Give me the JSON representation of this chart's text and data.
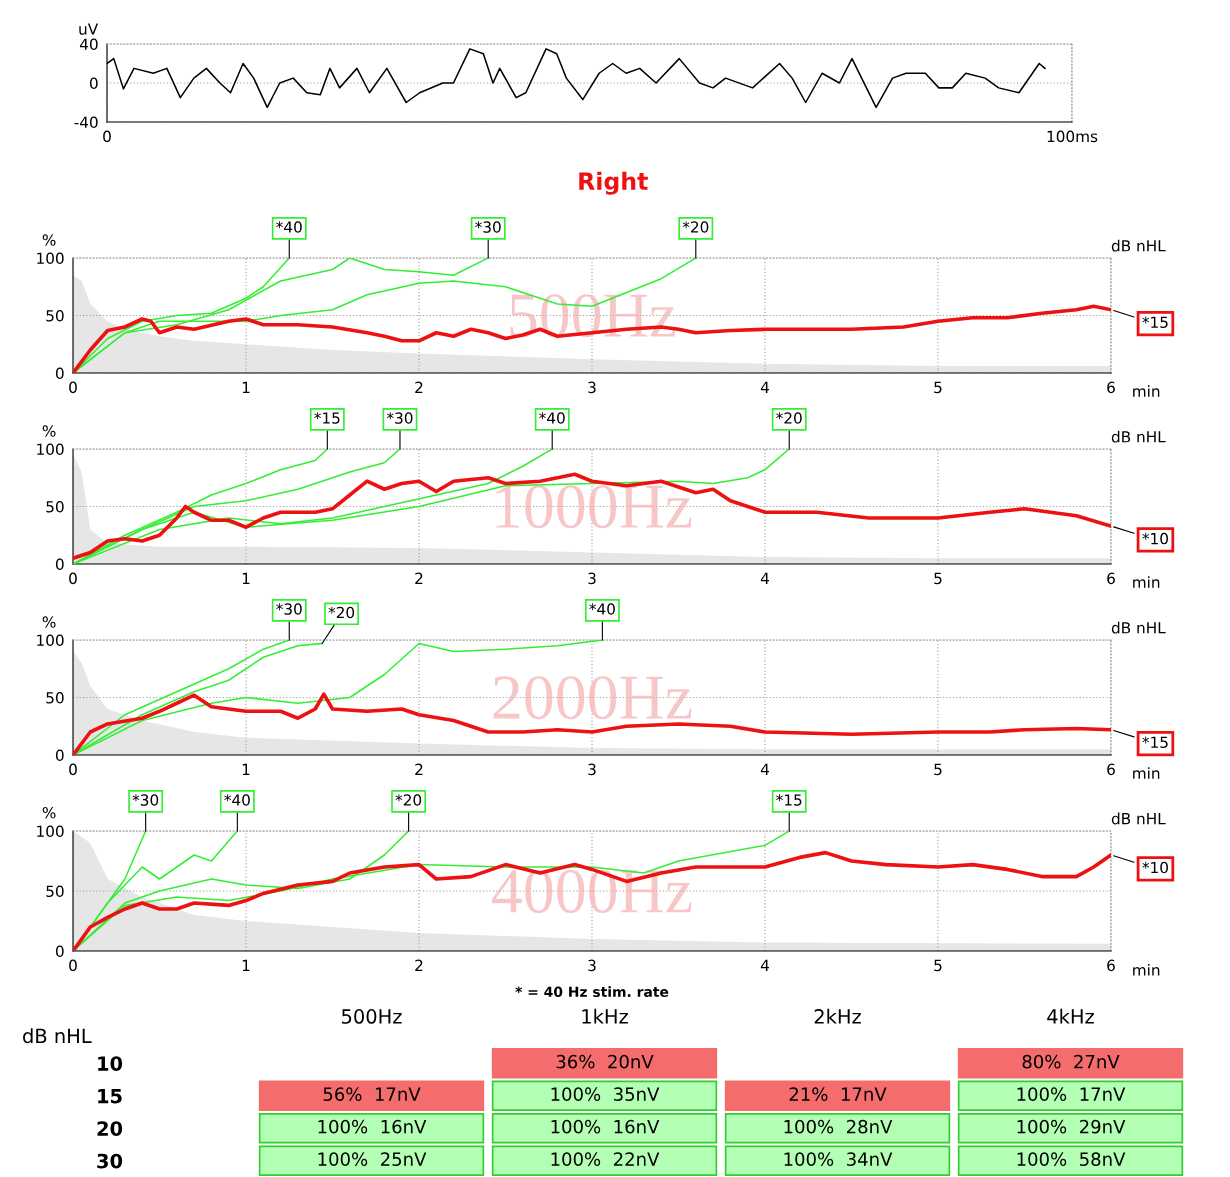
{
  "chart_data": [
    {
      "type": "line",
      "ylabel": "uV",
      "xlim": [
        0,
        100
      ],
      "ylim": [
        -40,
        40
      ],
      "xticks": [
        0,
        {
          "value": 100,
          "label": "100ms"
        }
      ],
      "yticks": [
        -40,
        0,
        40
      ],
      "grid": true,
      "tick_labels": true,
      "series": [
        {
          "color": "#000000",
          "x": [
            0,
            0.7,
            1.7,
            2.8,
            4.8,
            6.2,
            7.6,
            9.0,
            10.3,
            11.7,
            12.8,
            14.1,
            15.2,
            16.6,
            17.9,
            19.3,
            20.7,
            22.1,
            23.1,
            24.1,
            25.9,
            27.2,
            29.0,
            31.0,
            32.4,
            34.8,
            35.9,
            37.6,
            39.0,
            40.0,
            40.7,
            42.4,
            43.4,
            45.5,
            46.6,
            47.6,
            49.3,
            51.0,
            52.4,
            53.8,
            55.2,
            56.9,
            59.3,
            61.4,
            62.8,
            64.1,
            66.9,
            69.7,
            71.0,
            72.4,
            74.1,
            75.9,
            77.2,
            79.7,
            81.4,
            82.8,
            84.8,
            86.2,
            87.6,
            89.0,
            91.0,
            92.4,
            94.5,
            96.6,
            97.2
          ],
          "values": [
            20,
            25,
            -6,
            15,
            10,
            15,
            -15,
            5,
            15,
            0,
            -10,
            20,
            5,
            -25,
            0,
            5,
            -10,
            -12,
            15,
            -5,
            15,
            -10,
            15,
            -20,
            -10,
            0,
            0,
            35,
            30,
            0,
            15,
            -15,
            -10,
            35,
            30,
            5,
            -17,
            10,
            20,
            10,
            15,
            0,
            25,
            0,
            -5,
            5,
            -5,
            20,
            5,
            -20,
            10,
            0,
            25,
            -25,
            5,
            10,
            10,
            -5,
            -5,
            10,
            5,
            -5,
            -10,
            20,
            15
          ]
        }
      ]
    },
    {
      "type": "line",
      "title": "Right",
      "subtitle": "500Hz",
      "ylabel": "%",
      "y2label": "dB nHL",
      "xlabel": "min",
      "xlim": [
        0,
        6
      ],
      "ylim": [
        0,
        100
      ],
      "xticks": [
        0,
        1,
        2,
        3,
        4,
        5,
        6
      ],
      "yticks": [
        0,
        50,
        100
      ],
      "grid": true,
      "series": [
        {
          "type": "area",
          "color": "#e6e6e6",
          "x": [
            0,
            0.05,
            0.1,
            0.2,
            0.3,
            0.5,
            0.7,
            1.0,
            1.5,
            2.0,
            3,
            4,
            5,
            6
          ],
          "values": [
            85,
            80,
            60,
            45,
            38,
            32,
            28,
            25,
            20,
            17,
            12,
            8,
            6,
            6
          ]
        },
        {
          "name": "*40",
          "color": "#33ee33",
          "x": [
            0,
            0.2,
            0.4,
            0.6,
            0.8,
            1.0,
            1.1,
            1.25
          ],
          "values": [
            0,
            30,
            45,
            50,
            52,
            65,
            75,
            100
          ]
        },
        {
          "name": "*30",
          "color": "#33ee33",
          "x": [
            0,
            0.3,
            0.6,
            0.9,
            1.2,
            1.5,
            1.6,
            1.8,
            2.0,
            2.2,
            2.4
          ],
          "values": [
            0,
            35,
            42,
            55,
            80,
            90,
            100,
            90,
            88,
            85,
            100
          ]
        },
        {
          "name": "*20",
          "color": "#33ee33",
          "x": [
            0,
            0.3,
            0.5,
            0.8,
            1.0,
            1.2,
            1.5,
            1.7,
            2.0,
            2.2,
            2.5,
            2.8,
            3.0,
            3.2,
            3.4,
            3.6
          ],
          "values": [
            0,
            35,
            45,
            45,
            45,
            50,
            55,
            68,
            78,
            80,
            75,
            60,
            58,
            70,
            82,
            100
          ]
        },
        {
          "name": "*15",
          "color": "#ee1111",
          "x": [
            0,
            0.1,
            0.2,
            0.3,
            0.4,
            0.45,
            0.5,
            0.6,
            0.7,
            0.9,
            1.0,
            1.1,
            1.3,
            1.5,
            1.7,
            1.8,
            1.9,
            2.0,
            2.1,
            2.2,
            2.3,
            2.4,
            2.5,
            2.6,
            2.7,
            2.8,
            3.0,
            3.2,
            3.4,
            3.5,
            3.6,
            3.8,
            4.0,
            4.2,
            4.5,
            4.8,
            5.0,
            5.2,
            5.4,
            5.6,
            5.8,
            5.9,
            6.0
          ],
          "values": [
            0,
            20,
            37,
            40,
            47,
            45,
            35,
            40,
            38,
            45,
            47,
            42,
            42,
            40,
            35,
            32,
            28,
            28,
            35,
            32,
            38,
            35,
            30,
            33,
            38,
            32,
            35,
            38,
            40,
            38,
            35,
            37,
            38,
            38,
            38,
            40,
            45,
            48,
            48,
            52,
            55,
            58,
            55
          ]
        }
      ]
    },
    {
      "type": "line",
      "subtitle": "1000Hz",
      "ylabel": "%",
      "y2label": "dB nHL",
      "xlabel": "min",
      "xlim": [
        0,
        6
      ],
      "ylim": [
        0,
        100
      ],
      "xticks": [
        0,
        1,
        2,
        3,
        4,
        5,
        6
      ],
      "yticks": [
        0,
        50,
        100
      ],
      "grid": true,
      "series": [
        {
          "type": "area",
          "color": "#e6e6e6",
          "x": [
            0,
            0.05,
            0.1,
            0.2,
            0.5,
            1,
            2,
            3,
            4,
            5,
            6
          ],
          "values": [
            95,
            80,
            30,
            18,
            15,
            15,
            14,
            10,
            6,
            5,
            5
          ]
        },
        {
          "name": "*15",
          "color": "#33ee33",
          "x": [
            0,
            0.3,
            0.6,
            0.8,
            1.0,
            1.2,
            1.4,
            1.47
          ],
          "values": [
            0,
            25,
            45,
            60,
            70,
            82,
            90,
            100
          ]
        },
        {
          "name": "*30",
          "color": "#33ee33",
          "x": [
            0,
            0.4,
            0.7,
            1.0,
            1.3,
            1.6,
            1.8,
            1.89
          ],
          "values": [
            0,
            30,
            50,
            55,
            65,
            80,
            88,
            100
          ]
        },
        {
          "name": "*40",
          "color": "#33ee33",
          "x": [
            0,
            0.5,
            0.9,
            1.2,
            1.5,
            1.8,
            2.1,
            2.4,
            2.6,
            2.77
          ],
          "values": [
            0,
            30,
            40,
            35,
            40,
            50,
            60,
            70,
            85,
            100
          ]
        },
        {
          "name": "*20",
          "color": "#33ee33",
          "x": [
            0,
            0.4,
            0.7,
            1.0,
            1.5,
            2.0,
            2.5,
            3.0,
            3.5,
            3.7,
            3.9,
            4.0,
            4.14
          ],
          "values": [
            0,
            30,
            45,
            32,
            38,
            50,
            68,
            70,
            72,
            70,
            75,
            82,
            100
          ]
        },
        {
          "name": "*10",
          "color": "#ee1111",
          "x": [
            0,
            0.1,
            0.2,
            0.3,
            0.4,
            0.5,
            0.6,
            0.65,
            0.7,
            0.8,
            0.9,
            1.0,
            1.1,
            1.2,
            1.4,
            1.5,
            1.6,
            1.7,
            1.8,
            1.9,
            2.0,
            2.1,
            2.2,
            2.4,
            2.5,
            2.7,
            2.9,
            3.0,
            3.2,
            3.4,
            3.6,
            3.7,
            3.8,
            3.9,
            4.0,
            4.3,
            4.6,
            5.0,
            5.3,
            5.5,
            5.8,
            6.0
          ],
          "values": [
            5,
            10,
            20,
            22,
            20,
            25,
            40,
            50,
            45,
            38,
            38,
            32,
            40,
            45,
            45,
            48,
            60,
            72,
            65,
            70,
            72,
            63,
            72,
            75,
            70,
            72,
            78,
            72,
            68,
            72,
            62,
            65,
            55,
            50,
            45,
            45,
            40,
            40,
            45,
            48,
            42,
            33
          ]
        }
      ]
    },
    {
      "type": "line",
      "subtitle": "2000Hz",
      "ylabel": "%",
      "y2label": "dB nHL",
      "xlabel": "min",
      "xlim": [
        0,
        6
      ],
      "ylim": [
        0,
        100
      ],
      "xticks": [
        0,
        1,
        2,
        3,
        4,
        5,
        6
      ],
      "yticks": [
        0,
        50,
        100
      ],
      "grid": true,
      "series": [
        {
          "type": "area",
          "color": "#e6e6e6",
          "x": [
            0,
            0.05,
            0.1,
            0.2,
            0.4,
            0.7,
            1,
            2,
            3,
            4,
            6
          ],
          "values": [
            90,
            80,
            60,
            40,
            30,
            20,
            15,
            10,
            6,
            5,
            5
          ]
        },
        {
          "name": "*30",
          "color": "#33ee33",
          "x": [
            0,
            0.3,
            0.6,
            0.9,
            1.1,
            1.25
          ],
          "values": [
            0,
            35,
            55,
            75,
            92,
            100
          ]
        },
        {
          "name": "*20",
          "color": "#33ee33",
          "x": [
            0,
            0.4,
            0.7,
            0.9,
            1.1,
            1.3,
            1.44
          ],
          "values": [
            0,
            35,
            55,
            65,
            85,
            95,
            97
          ]
        },
        {
          "name": "*40",
          "color": "#33ee33",
          "x": [
            0,
            0.4,
            0.8,
            1.0,
            1.3,
            1.6,
            1.8,
            2.0,
            2.2,
            2.5,
            2.8,
            3.06
          ],
          "values": [
            0,
            30,
            45,
            50,
            45,
            50,
            70,
            97,
            90,
            92,
            95,
            100
          ]
        },
        {
          "name": "*15",
          "color": "#ee1111",
          "x": [
            0,
            0.1,
            0.2,
            0.4,
            0.5,
            0.6,
            0.7,
            0.8,
            1.0,
            1.2,
            1.3,
            1.4,
            1.45,
            1.5,
            1.7,
            1.9,
            2.0,
            2.2,
            2.4,
            2.6,
            2.8,
            3.0,
            3.2,
            3.5,
            3.8,
            4.0,
            4.5,
            5.0,
            5.3,
            5.5,
            5.8,
            6.0
          ],
          "values": [
            0,
            20,
            27,
            32,
            38,
            45,
            52,
            42,
            38,
            38,
            32,
            40,
            53,
            40,
            38,
            40,
            35,
            30,
            20,
            20,
            22,
            20,
            25,
            27,
            25,
            20,
            18,
            20,
            20,
            22,
            23,
            22
          ]
        }
      ]
    },
    {
      "type": "line",
      "subtitle": "4000Hz",
      "ylabel": "%",
      "y2label": "dB nHL",
      "xlabel": "min",
      "xlim": [
        0,
        6
      ],
      "ylim": [
        0,
        100
      ],
      "xticks": [
        0,
        1,
        2,
        3,
        4,
        5,
        6
      ],
      "yticks": [
        0,
        50,
        100
      ],
      "grid": true,
      "annotations": [
        "* = 40 Hz stim. rate"
      ],
      "series": [
        {
          "type": "area",
          "color": "#e6e6e6",
          "x": [
            0,
            0.1,
            0.2,
            0.4,
            0.7,
            1,
            1.5,
            2,
            3,
            4,
            6
          ],
          "values": [
            100,
            90,
            60,
            45,
            30,
            25,
            20,
            15,
            10,
            7,
            6
          ]
        },
        {
          "name": "*30",
          "color": "#33ee33",
          "x": [
            0,
            0.2,
            0.3,
            0.42
          ],
          "values": [
            0,
            40,
            60,
            100
          ]
        },
        {
          "name": "*40",
          "color": "#33ee33",
          "x": [
            0,
            0.2,
            0.4,
            0.5,
            0.7,
            0.8,
            0.95
          ],
          "values": [
            0,
            40,
            70,
            60,
            80,
            75,
            100
          ]
        },
        {
          "name": "*20",
          "color": "#33ee33",
          "x": [
            0,
            0.3,
            0.5,
            0.8,
            1.0,
            1.3,
            1.6,
            1.8,
            1.94
          ],
          "values": [
            0,
            40,
            50,
            60,
            55,
            52,
            60,
            80,
            100
          ]
        },
        {
          "name": "*15",
          "color": "#33ee33",
          "x": [
            0,
            0.3,
            0.6,
            0.9,
            1.2,
            1.5,
            2.0,
            2.5,
            3.0,
            3.3,
            3.5,
            4.0,
            4.14
          ],
          "values": [
            0,
            38,
            45,
            42,
            50,
            60,
            72,
            70,
            70,
            65,
            75,
            88,
            100
          ]
        },
        {
          "name": "*10",
          "color": "#ee1111",
          "x": [
            0,
            0.1,
            0.2,
            0.3,
            0.4,
            0.5,
            0.6,
            0.7,
            0.9,
            1.0,
            1.1,
            1.3,
            1.5,
            1.6,
            1.8,
            2.0,
            2.1,
            2.3,
            2.5,
            2.7,
            2.9,
            3.0,
            3.2,
            3.4,
            3.6,
            3.8,
            4.0,
            4.2,
            4.35,
            4.5,
            4.7,
            5.0,
            5.2,
            5.4,
            5.6,
            5.8,
            5.9,
            6.0
          ],
          "values": [
            0,
            20,
            28,
            35,
            40,
            35,
            35,
            40,
            38,
            42,
            48,
            55,
            58,
            65,
            70,
            72,
            60,
            62,
            72,
            65,
            72,
            68,
            58,
            65,
            70,
            70,
            70,
            78,
            82,
            75,
            72,
            70,
            72,
            68,
            62,
            62,
            70,
            80
          ]
        }
      ]
    },
    {
      "type": "other",
      "ylabel": "dB nHL",
      "categories": [
        "500Hz",
        "1kHz",
        "2kHz",
        "4kHz"
      ],
      "y_categories": [
        "10",
        "15",
        "20",
        "30"
      ],
      "colors": [
        [
          null,
          "#f56c6c",
          null,
          "#f56c6c"
        ],
        [
          "#f56c6c",
          "#b3ffb3",
          "#f56c6c",
          "#b3ffb3"
        ],
        [
          "#b3ffb3",
          "#b3ffb3",
          "#b3ffb3",
          "#b3ffb3"
        ],
        [
          "#b3ffb3",
          "#b3ffb3",
          "#b3ffb3",
          "#b3ffb3"
        ]
      ],
      "cell_labels": [
        [
          null,
          "36%  20nV",
          null,
          "80%  27nV"
        ],
        [
          "56%  17nV",
          "100%  35nV",
          "21%  17nV",
          "100%  17nV"
        ],
        [
          "100%  16nV",
          "100%  16nV",
          "100%  28nV",
          "100%  29nV"
        ],
        [
          "100%  25nV",
          "100%  22nV",
          "100%  34nV",
          "100%  58nV"
        ]
      ]
    }
  ]
}
